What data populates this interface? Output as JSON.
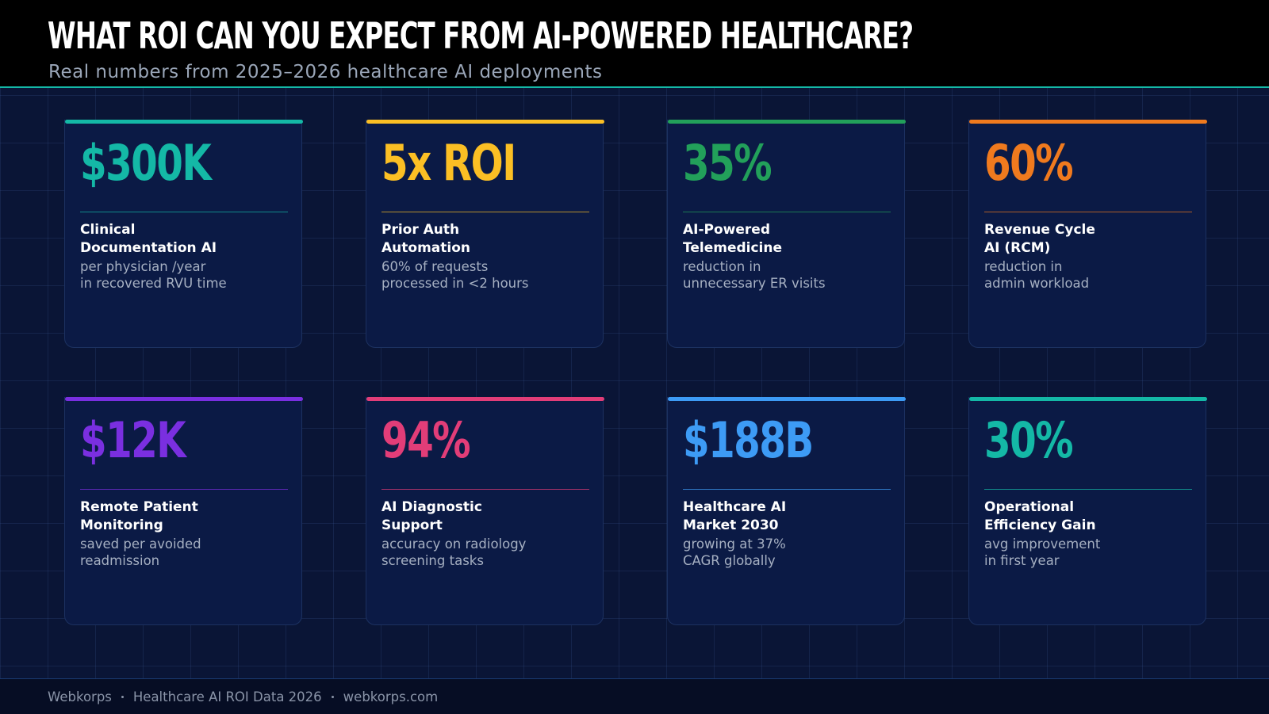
{
  "header": {
    "title": "WHAT ROI CAN YOU EXPECT FROM AI-POWERED HEALTHCARE?",
    "subtitle": "Real numbers from 2025–2026 healthcare AI deployments"
  },
  "cards": [
    {
      "stat": "$300K",
      "label": [
        "Clinical",
        "Documentation AI"
      ],
      "description": [
        "per physician /year",
        "in recovered RVU time"
      ],
      "color": "#14b8a6"
    },
    {
      "stat": "5x ROI",
      "label": [
        "Prior Auth",
        "Automation"
      ],
      "description": [
        "60% of requests",
        "processed in <2 hours"
      ],
      "color": "#fbbf24"
    },
    {
      "stat": "35%",
      "label": [
        "AI-Powered",
        "Telemedicine"
      ],
      "description": [
        "reduction in",
        "unnecessary ER visits"
      ],
      "color": "#22a05a"
    },
    {
      "stat": "60%",
      "label": [
        "Revenue Cycle",
        "AI (RCM)"
      ],
      "description": [
        "reduction in",
        "admin workload"
      ],
      "color": "#f07a1e"
    },
    {
      "stat": "$12K",
      "label": [
        "Remote Patient",
        "Monitoring"
      ],
      "description": [
        "saved per avoided",
        "readmission"
      ],
      "color": "#7a2fe0"
    },
    {
      "stat": "94%",
      "label": [
        "AI Diagnostic",
        "Support"
      ],
      "description": [
        "accuracy on radiology",
        "screening tasks"
      ],
      "color": "#e23d78"
    },
    {
      "stat": "$188B",
      "label": [
        "Healthcare AI",
        "Market 2030"
      ],
      "description": [
        "growing at 37%",
        "CAGR globally"
      ],
      "color": "#3d9bf5"
    },
    {
      "stat": "30%",
      "label": [
        "Operational",
        "Efficiency Gain"
      ],
      "description": [
        "avg improvement",
        "in first year"
      ],
      "color": "#14b8a6"
    }
  ],
  "footer": [
    "Webkorps",
    "Healthcare AI ROI Data 2026",
    "webkorps.com"
  ]
}
